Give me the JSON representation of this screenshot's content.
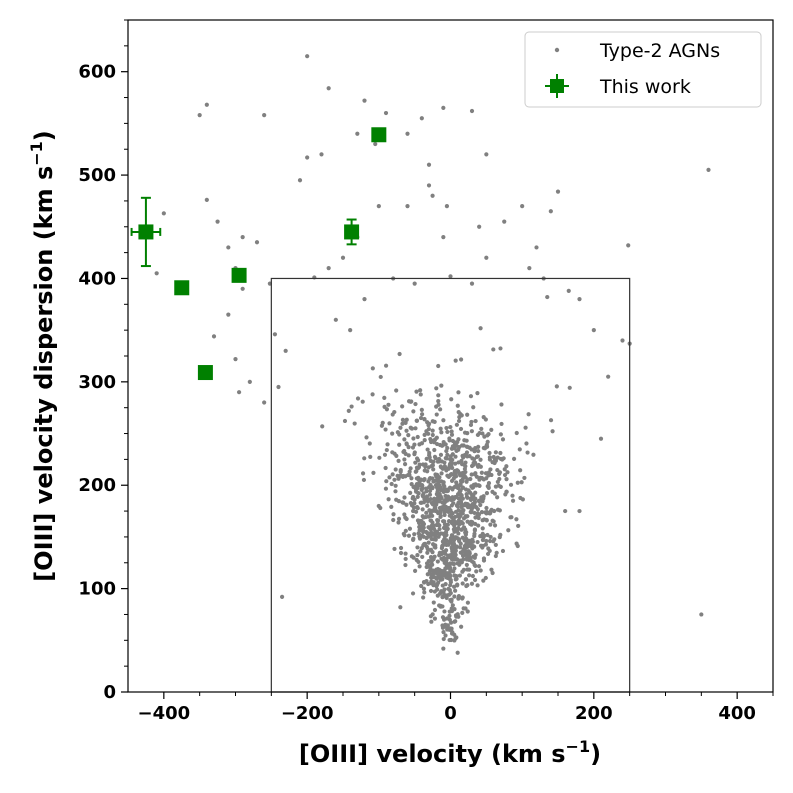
{
  "chart_data": {
    "type": "scatter",
    "xlabel_main": "[OIII] velocity (km s",
    "xlabel_sup": "−1",
    "xlabel_end": ")",
    "ylabel_main": "[OIII] velocity dispersion (km s",
    "ylabel_sup": "−1",
    "ylabel_end": ")",
    "xlim": [
      -450,
      450
    ],
    "ylim": [
      0,
      650
    ],
    "xticks": [
      -400,
      -200,
      0,
      200,
      400
    ],
    "xtick_labels": [
      "−400",
      "−200",
      "0",
      "200",
      "400"
    ],
    "yticks": [
      0,
      100,
      200,
      300,
      400,
      500,
      600
    ],
    "ytick_labels": [
      "0",
      "100",
      "200",
      "300",
      "400",
      "500",
      "600"
    ],
    "legend_position": "top-right",
    "selection_box": {
      "x": [
        -250,
        250
      ],
      "y": [
        0,
        400
      ]
    },
    "series": [
      {
        "name": "Type-2 AGNs",
        "marker": "small-dot",
        "color": "#808080",
        "points": [
          [
            -200,
            615
          ],
          [
            -120,
            572
          ],
          [
            -170,
            584
          ],
          [
            -90,
            560
          ],
          [
            -40,
            555
          ],
          [
            -60,
            540
          ],
          [
            -10,
            565
          ],
          [
            30,
            562
          ],
          [
            -260,
            558
          ],
          [
            -340,
            568
          ],
          [
            -130,
            540
          ],
          [
            -200,
            517
          ],
          [
            -180,
            520
          ],
          [
            -30,
            510
          ],
          [
            -105,
            530
          ],
          [
            -210,
            495
          ],
          [
            -30,
            490
          ],
          [
            -5,
            470
          ],
          [
            50,
            520
          ],
          [
            -25,
            480
          ],
          [
            -60,
            470
          ],
          [
            -130,
            440
          ],
          [
            -100,
            470
          ],
          [
            -10,
            440
          ],
          [
            40,
            450
          ],
          [
            75,
            455
          ],
          [
            100,
            470
          ],
          [
            150,
            484
          ],
          [
            140,
            465
          ],
          [
            -290,
            440
          ],
          [
            -310,
            430
          ],
          [
            -340,
            476
          ],
          [
            -400,
            463
          ],
          [
            -410,
            405
          ],
          [
            -300,
            410
          ],
          [
            -290,
            390
          ],
          [
            -310,
            365
          ],
          [
            -330,
            344
          ],
          [
            -270,
            435
          ],
          [
            -280,
            300
          ],
          [
            -300,
            322
          ],
          [
            -295,
            290
          ],
          [
            -260,
            280
          ],
          [
            -240,
            295
          ],
          [
            -230,
            330
          ],
          [
            -160,
            360
          ],
          [
            -140,
            350
          ],
          [
            -120,
            380
          ],
          [
            -80,
            400
          ],
          [
            -50,
            395
          ],
          [
            0,
            402
          ],
          [
            30,
            395
          ],
          [
            50,
            420
          ],
          [
            110,
            410
          ],
          [
            120,
            430
          ],
          [
            130,
            400
          ],
          [
            135,
            382
          ],
          [
            165,
            388
          ],
          [
            180,
            380
          ],
          [
            200,
            350
          ],
          [
            220,
            305
          ],
          [
            250,
            337
          ],
          [
            248,
            432
          ],
          [
            240,
            340
          ],
          [
            -170,
            410
          ],
          [
            -190,
            401
          ],
          [
            -150,
            420
          ],
          [
            -245,
            346
          ],
          [
            -252,
            395
          ],
          [
            360,
            505
          ],
          [
            350,
            75
          ],
          [
            -235,
            92
          ],
          [
            -70,
            82
          ],
          [
            -10,
            42
          ],
          [
            10,
            38
          ],
          [
            210,
            245
          ],
          [
            180,
            175
          ],
          [
            160,
            175
          ],
          [
            -325,
            455
          ],
          [
            -350,
            558
          ]
        ]
      },
      {
        "name": "This work",
        "marker": "square",
        "color": "#008000",
        "points": [
          {
            "x": -425,
            "y": 445,
            "xerr": 20,
            "yerr": 33
          },
          {
            "x": -375,
            "y": 391
          },
          {
            "x": -342,
            "y": 309
          },
          {
            "x": -295,
            "y": 403
          },
          {
            "x": -138,
            "y": 445,
            "yerr": 12
          },
          {
            "x": -100,
            "y": 539
          }
        ]
      }
    ]
  }
}
